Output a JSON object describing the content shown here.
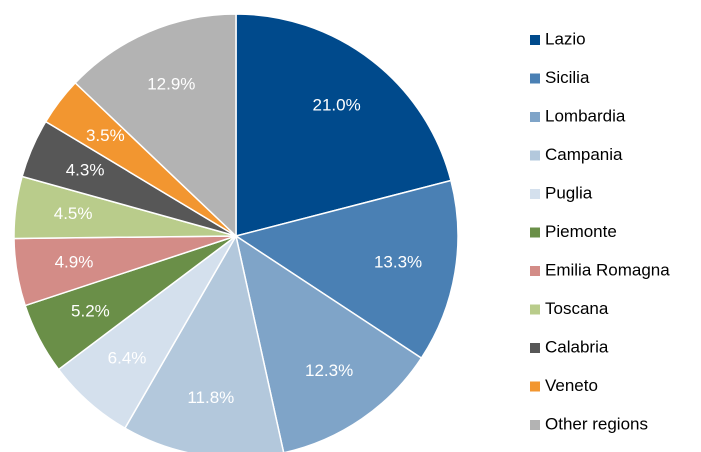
{
  "chart_data": {
    "type": "pie",
    "categories": [
      "Lazio",
      "Sicilia",
      "Lombardia",
      "Campania",
      "Puglia",
      "Piemonte",
      "Emilia Romagna",
      "Toscana",
      "Calabria",
      "Veneto",
      "Other regions"
    ],
    "values": [
      21.0,
      13.3,
      12.3,
      11.8,
      6.4,
      5.2,
      4.9,
      4.5,
      4.3,
      3.5,
      12.9
    ],
    "value_labels": [
      "21.0%",
      "13.3%",
      "12.3%",
      "11.8%",
      "6.4%",
      "5.2%",
      "4.9%",
      "4.5%",
      "4.3%",
      "3.5%",
      "12.9%"
    ],
    "colors": [
      "#004a8c",
      "#4a80b4",
      "#7fa4c8",
      "#b3c8dc",
      "#d4e0ed",
      "#6a8f48",
      "#d38c87",
      "#b9cc8b",
      "#575757",
      "#f29630",
      "#b3b3b3"
    ],
    "legend": "right"
  }
}
